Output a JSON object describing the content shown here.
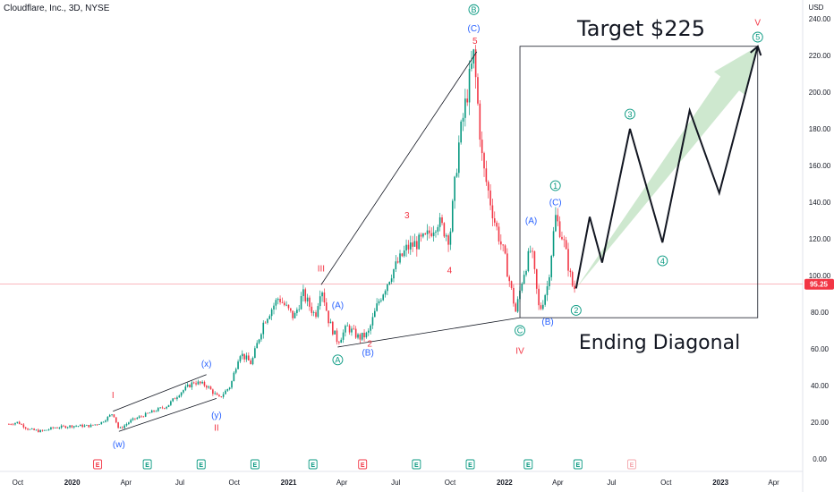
{
  "chart_data": {
    "type": "candlestick",
    "title": "Cloudflare, Inc., 3D, NYSE",
    "y_unit": "USD",
    "ylim": [
      0,
      245
    ],
    "y_ticks": [
      "0.00",
      "20.00",
      "40.00",
      "60.00",
      "80.00",
      "100.00",
      "120.00",
      "140.00",
      "160.00",
      "180.00",
      "200.00",
      "220.00",
      "240.00"
    ],
    "x_ticks": [
      "Oct",
      "2020",
      "Apr",
      "Jul",
      "Oct",
      "2021",
      "Apr",
      "Jul",
      "Oct",
      "2022",
      "Apr",
      "Jul",
      "Oct",
      "2023",
      "Apr"
    ],
    "bold_x_ticks": [
      "2020",
      "2021",
      "2022",
      "2023"
    ],
    "last_price": "95.25",
    "price_path": [
      [
        "2019-09-16",
        19
      ],
      [
        "2019-10-01",
        20
      ],
      [
        "2019-10-20",
        16
      ],
      [
        "2019-11-10",
        15
      ],
      [
        "2019-12-01",
        17
      ],
      [
        "2020-01-01",
        18
      ],
      [
        "2020-02-01",
        18
      ],
      [
        "2020-02-20",
        20
      ],
      [
        "2020-03-10",
        25
      ],
      [
        "2020-03-20",
        16
      ],
      [
        "2020-04-10",
        21
      ],
      [
        "2020-05-10",
        25
      ],
      [
        "2020-06-10",
        29
      ],
      [
        "2020-07-01",
        36
      ],
      [
        "2020-07-25",
        42
      ],
      [
        "2020-08-15",
        40
      ],
      [
        "2020-09-05",
        33
      ],
      [
        "2020-09-25",
        40
      ],
      [
        "2020-10-10",
        58
      ],
      [
        "2020-10-30",
        52
      ],
      [
        "2020-11-20",
        75
      ],
      [
        "2020-12-15",
        88
      ],
      [
        "2021-01-10",
        77
      ],
      [
        "2021-01-25",
        90
      ],
      [
        "2021-02-15",
        78
      ],
      [
        "2021-02-25",
        95
      ],
      [
        "2021-03-10",
        75
      ],
      [
        "2021-03-25",
        64
      ],
      [
        "2021-04-10",
        72
      ],
      [
        "2021-04-30",
        66
      ],
      [
        "2021-05-15",
        68
      ],
      [
        "2021-06-01",
        85
      ],
      [
        "2021-06-25",
        102
      ],
      [
        "2021-07-20",
        115
      ],
      [
        "2021-08-20",
        120
      ],
      [
        "2021-09-10",
        130
      ],
      [
        "2021-09-30",
        120
      ],
      [
        "2021-10-15",
        170
      ],
      [
        "2021-10-30",
        200
      ],
      [
        "2021-11-10",
        220
      ],
      [
        "2021-11-25",
        160
      ],
      [
        "2021-12-15",
        130
      ],
      [
        "2022-01-01",
        110
      ],
      [
        "2022-01-20",
        80
      ],
      [
        "2022-02-01",
        100
      ],
      [
        "2022-02-15",
        115
      ],
      [
        "2022-03-01",
        80
      ],
      [
        "2022-03-15",
        95
      ],
      [
        "2022-03-28",
        132
      ],
      [
        "2022-04-10",
        120
      ],
      [
        "2022-04-25",
        95
      ],
      [
        "2022-05-02",
        92
      ]
    ],
    "projection": [
      [
        "2022-05-02",
        93
      ],
      [
        "2022-05-25",
        132
      ],
      [
        "2022-06-15",
        107
      ],
      [
        "2022-08-01",
        180
      ],
      [
        "2022-09-25",
        118
      ],
      [
        "2022-11-10",
        190
      ],
      [
        "2022-12-30",
        145
      ],
      [
        "2023-03-05",
        225
      ]
    ],
    "trendlines": [
      {
        "from": [
          "2021-02-25",
          95
        ],
        "to": [
          "2021-11-15",
          222
        ]
      },
      {
        "from": [
          "2021-03-25",
          61
        ],
        "to": [
          "2022-01-27",
          77
        ]
      },
      {
        "from": [
          "2020-03-10",
          26
        ],
        "to": [
          "2020-08-15",
          46
        ]
      },
      {
        "from": [
          "2020-03-20",
          15
        ],
        "to": [
          "2020-09-01",
          33
        ]
      }
    ],
    "target_box": {
      "from": [
        "2022-01-27",
        77
      ],
      "to": [
        "2023-03-05",
        225
      ]
    },
    "texts": {
      "target": "Target $225",
      "ending": "Ending Diagonal"
    },
    "wave_labels": [
      {
        "text": "B",
        "date": "2021-11-10",
        "price": 245,
        "color": "#089981",
        "circle": true
      },
      {
        "text": "(C)",
        "date": "2021-11-10",
        "price": 235,
        "color": "#2962ff",
        "circle": false
      },
      {
        "text": "5",
        "date": "2021-11-12",
        "price": 228,
        "color": "#f23645",
        "circle": false
      },
      {
        "text": "V",
        "date": "2023-03-05",
        "price": 238,
        "color": "#f23645",
        "circle": false
      },
      {
        "text": "5",
        "date": "2023-03-05",
        "price": 230,
        "color": "#089981",
        "circle": true
      },
      {
        "text": "3",
        "date": "2022-08-01",
        "price": 188,
        "color": "#089981",
        "circle": true
      },
      {
        "text": "1",
        "date": "2022-03-28",
        "price": 149,
        "color": "#089981",
        "circle": true
      },
      {
        "text": "(C)",
        "date": "2022-03-28",
        "price": 140,
        "color": "#2962ff",
        "circle": false
      },
      {
        "text": "(A)",
        "date": "2022-02-15",
        "price": 130,
        "color": "#2962ff",
        "circle": false
      },
      {
        "text": "3",
        "date": "2021-07-20",
        "price": 133,
        "color": "#f23645",
        "circle": false
      },
      {
        "text": "4",
        "date": "2021-09-30",
        "price": 103,
        "color": "#f23645",
        "circle": false
      },
      {
        "text": "4",
        "date": "2022-09-25",
        "price": 108,
        "color": "#089981",
        "circle": true
      },
      {
        "text": "III",
        "date": "2021-02-25",
        "price": 104,
        "color": "#f23645",
        "circle": false
      },
      {
        "text": "2",
        "date": "2022-05-02",
        "price": 81,
        "color": "#089981",
        "circle": true
      },
      {
        "text": "(A)",
        "date": "2021-03-25",
        "price": 84,
        "color": "#2962ff",
        "circle": false
      },
      {
        "text": "(B)",
        "date": "2022-03-15",
        "price": 75,
        "color": "#2962ff",
        "circle": false
      },
      {
        "text": "C",
        "date": "2022-01-27",
        "price": 70,
        "color": "#089981",
        "circle": true
      },
      {
        "text": "A",
        "date": "2021-03-25",
        "price": 54,
        "color": "#089981",
        "circle": true
      },
      {
        "text": "(B)",
        "date": "2021-05-15",
        "price": 58,
        "color": "#2962ff",
        "circle": false
      },
      {
        "text": "2",
        "date": "2021-05-18",
        "price": 63,
        "color": "#f23645",
        "circle": false
      },
      {
        "text": "IV",
        "date": "2022-01-27",
        "price": 59,
        "color": "#f23645",
        "circle": false
      },
      {
        "text": "(x)",
        "date": "2020-08-15",
        "price": 52,
        "color": "#2962ff",
        "circle": false
      },
      {
        "text": "I",
        "date": "2020-03-10",
        "price": 35,
        "color": "#f23645",
        "circle": false
      },
      {
        "text": "(y)",
        "date": "2020-09-01",
        "price": 24,
        "color": "#2962ff",
        "circle": false
      },
      {
        "text": "II",
        "date": "2020-09-01",
        "price": 17,
        "color": "#f23645",
        "circle": false
      },
      {
        "text": "(w)",
        "date": "2020-03-20",
        "price": 8,
        "color": "#2962ff",
        "circle": false
      }
    ],
    "events": [
      {
        "date": "2020-02-13",
        "type": "E",
        "color": "#f23645"
      },
      {
        "date": "2020-05-07",
        "type": "E",
        "color": "#089981"
      },
      {
        "date": "2020-08-06",
        "type": "E",
        "color": "#089981"
      },
      {
        "date": "2020-11-05",
        "type": "E",
        "color": "#089981"
      },
      {
        "date": "2021-02-11",
        "type": "E",
        "color": "#089981"
      },
      {
        "date": "2021-05-06",
        "type": "E",
        "color": "#f23645"
      },
      {
        "date": "2021-08-05",
        "type": "E",
        "color": "#089981"
      },
      {
        "date": "2021-11-04",
        "type": "E",
        "color": "#089981"
      },
      {
        "date": "2022-02-10",
        "type": "E",
        "color": "#089981"
      },
      {
        "date": "2022-05-05",
        "type": "E",
        "color": "#089981"
      },
      {
        "date": "2022-08-04",
        "type": "E",
        "color": "#f4a7ad"
      }
    ]
  }
}
